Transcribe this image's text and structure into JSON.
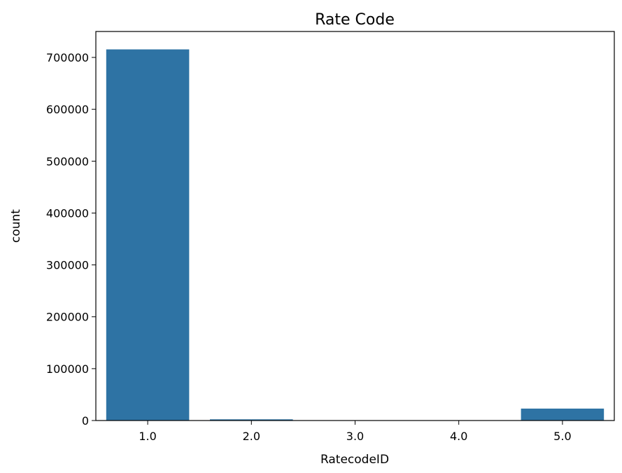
{
  "chart_data": {
    "type": "bar",
    "title": "Rate Code",
    "xlabel": "RatecodeID",
    "ylabel": "count",
    "categories": [
      "1.0",
      "2.0",
      "3.0",
      "4.0",
      "5.0"
    ],
    "values": [
      715500,
      2300,
      150,
      300,
      23000
    ],
    "ylim": [
      0,
      750000
    ],
    "yticks": [
      0,
      100000,
      200000,
      300000,
      400000,
      500000,
      600000,
      700000
    ],
    "ytick_labels": [
      "0",
      "100000",
      "200000",
      "300000",
      "400000",
      "500000",
      "600000",
      "700000"
    ],
    "grid": false,
    "bar_color": "#2e73a4"
  }
}
